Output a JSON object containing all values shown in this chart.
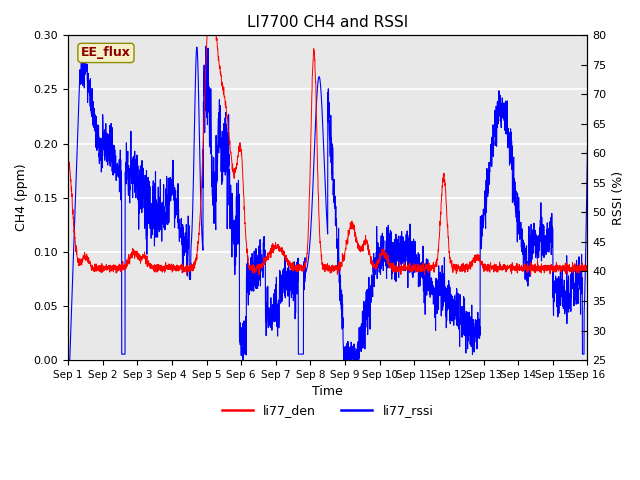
{
  "title": "LI7700 CH4 and RSSI",
  "xlabel": "Time",
  "ylabel_left": "CH4 (ppm)",
  "ylabel_right": "RSSI (%)",
  "xlim": [
    0,
    15
  ],
  "ylim_left": [
    0.0,
    0.3
  ],
  "ylim_right": [
    25,
    80
  ],
  "yticks_left": [
    0.0,
    0.05,
    0.1,
    0.15,
    0.2,
    0.25,
    0.3
  ],
  "yticks_right": [
    25,
    30,
    35,
    40,
    45,
    50,
    55,
    60,
    65,
    70,
    75,
    80
  ],
  "xtick_labels": [
    "Sep 1",
    "Sep 2",
    "Sep 3",
    "Sep 4",
    "Sep 5",
    "Sep 6",
    "Sep 7",
    "Sep 8",
    "Sep 9",
    "Sep 10",
    "Sep 11",
    "Sep 12",
    "Sep 13",
    "Sep 14",
    "Sep 15",
    "Sep 16"
  ],
  "legend_labels": [
    "li77_den",
    "li77_rssi"
  ],
  "line_colors": [
    "red",
    "blue"
  ],
  "annotation_text": "EE_flux",
  "background_color": "#e8e8e8",
  "grid_color": "white",
  "title_fontsize": 11,
  "axis_label_fontsize": 9,
  "tick_fontsize": 8
}
